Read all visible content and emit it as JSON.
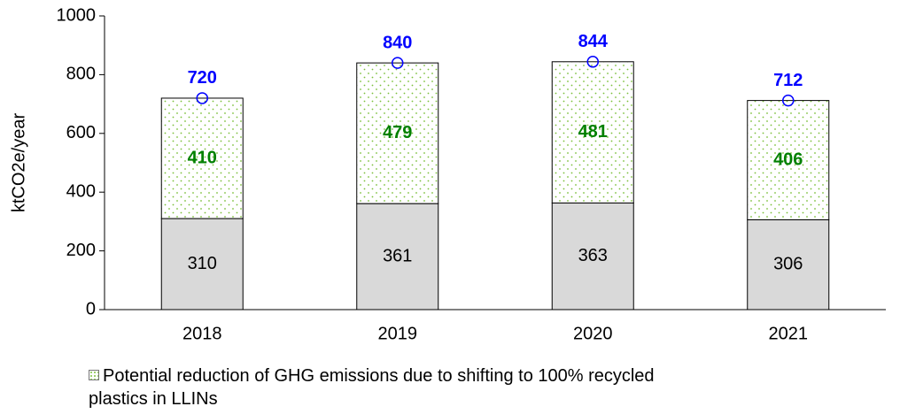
{
  "chart_data": {
    "type": "bar",
    "y_label": "ktCO2e/year",
    "categories": [
      "2018",
      "2019",
      "2020",
      "2021"
    ],
    "series": [
      {
        "color": "#d9d9d9",
        "values": [
          310,
          361,
          363,
          306
        ]
      },
      {
        "name": "Potential reduction of GHG emissions due to shifting to 100% recycled plastics in LLINs",
        "color": "#7bbf3a",
        "values": [
          410,
          479,
          481,
          406
        ]
      }
    ],
    "totals": [
      720,
      840,
      844,
      712
    ],
    "totals_color": "#0000ff",
    "ylim": [
      0,
      1000
    ],
    "yticks": [
      0,
      200,
      400,
      600,
      800,
      1000
    ],
    "grid": false,
    "legend": "bottom",
    "stacked": true
  }
}
